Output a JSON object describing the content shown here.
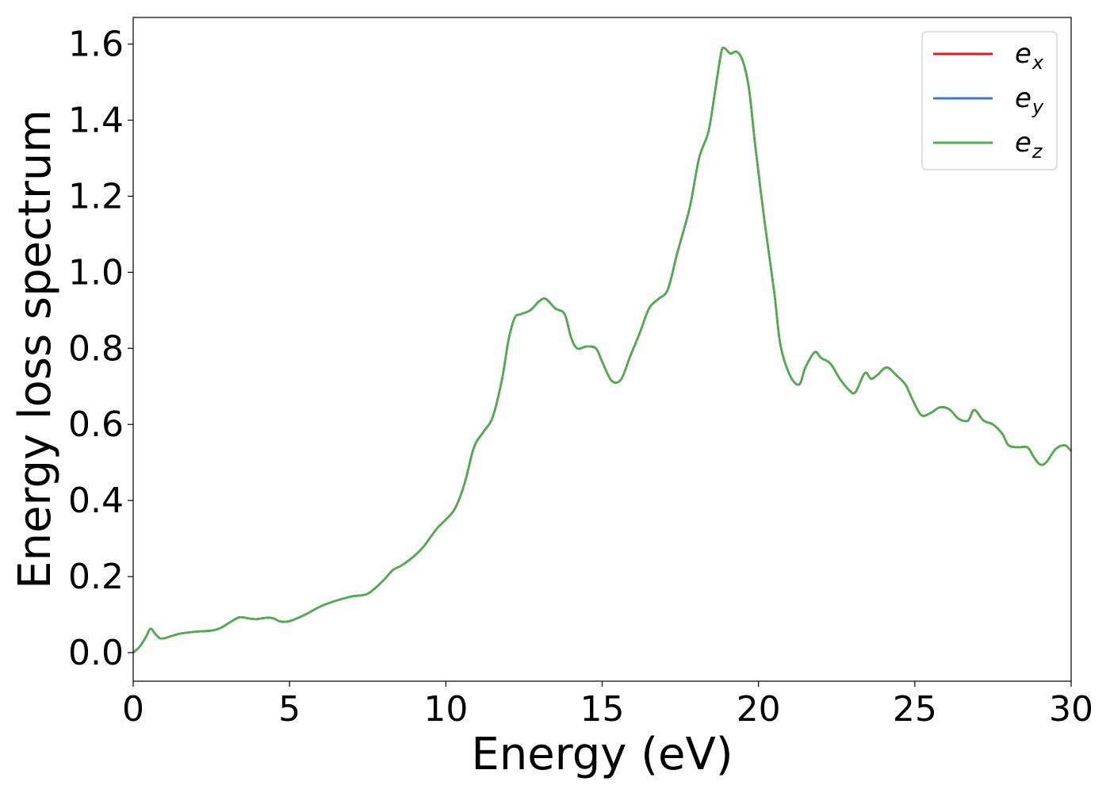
{
  "chart_data": {
    "type": "line",
    "xlabel": "Energy (eV)",
    "ylabel": "Energy loss spectrum",
    "xlim": [
      0,
      30
    ],
    "ylim": [
      -0.075,
      1.67
    ],
    "xticks": [
      0,
      5,
      10,
      15,
      20,
      25,
      30
    ],
    "yticks": [
      0.0,
      0.2,
      0.4,
      0.6,
      0.8,
      1.0,
      1.2,
      1.4,
      1.6
    ],
    "xtick_labels": [
      "0",
      "5",
      "10",
      "15",
      "20",
      "25",
      "30"
    ],
    "ytick_labels": [
      "0.0",
      "0.2",
      "0.4",
      "0.6",
      "0.8",
      "1.0",
      "1.2",
      "1.4",
      "1.6"
    ],
    "grid": false,
    "legend_position": "top-right",
    "x": [
      0.0,
      0.2,
      0.4,
      0.55,
      0.7,
      0.85,
      1.0,
      1.2,
      1.5,
      2.0,
      2.5,
      2.8,
      3.1,
      3.4,
      3.7,
      3.9,
      4.1,
      4.3,
      4.5,
      4.7,
      5.0,
      5.5,
      6.0,
      6.5,
      7.0,
      7.5,
      8.0,
      8.3,
      8.6,
      9.0,
      9.3,
      9.7,
      10.0,
      10.3,
      10.6,
      10.9,
      11.2,
      11.5,
      11.8,
      12.0,
      12.2,
      12.4,
      12.7,
      13.0,
      13.2,
      13.5,
      13.8,
      14.0,
      14.2,
      14.5,
      14.8,
      15.0,
      15.3,
      15.6,
      15.9,
      16.2,
      16.5,
      16.8,
      17.1,
      17.4,
      17.8,
      18.1,
      18.4,
      18.6,
      18.8,
      18.9,
      19.1,
      19.3,
      19.5,
      19.7,
      19.9,
      20.2,
      20.5,
      20.7,
      21.0,
      21.3,
      21.5,
      21.8,
      22.0,
      22.3,
      22.6,
      22.9,
      23.1,
      23.4,
      23.6,
      23.8,
      24.1,
      24.4,
      24.7,
      24.9,
      25.2,
      25.5,
      25.8,
      26.1,
      26.4,
      26.7,
      26.9,
      27.2,
      27.5,
      27.8,
      28.0,
      28.3,
      28.6,
      28.8,
      29.0,
      29.2,
      29.5,
      29.8,
      30.0
    ],
    "series": [
      {
        "name": "e_x",
        "color": "#e41a1c",
        "values": [
          0.0,
          0.015,
          0.04,
          0.063,
          0.05,
          0.038,
          0.038,
          0.043,
          0.05,
          0.055,
          0.058,
          0.065,
          0.08,
          0.093,
          0.09,
          0.088,
          0.09,
          0.092,
          0.09,
          0.082,
          0.083,
          0.1,
          0.122,
          0.137,
          0.148,
          0.155,
          0.19,
          0.217,
          0.23,
          0.255,
          0.28,
          0.325,
          0.35,
          0.38,
          0.445,
          0.54,
          0.58,
          0.62,
          0.72,
          0.82,
          0.88,
          0.89,
          0.9,
          0.925,
          0.93,
          0.905,
          0.89,
          0.83,
          0.8,
          0.805,
          0.8,
          0.765,
          0.715,
          0.718,
          0.78,
          0.84,
          0.905,
          0.93,
          0.955,
          1.05,
          1.17,
          1.3,
          1.37,
          1.47,
          1.575,
          1.59,
          1.575,
          1.58,
          1.555,
          1.48,
          1.33,
          1.13,
          0.95,
          0.81,
          0.73,
          0.705,
          0.75,
          0.79,
          0.775,
          0.76,
          0.72,
          0.69,
          0.685,
          0.735,
          0.72,
          0.73,
          0.75,
          0.73,
          0.705,
          0.67,
          0.625,
          0.63,
          0.645,
          0.64,
          0.615,
          0.61,
          0.638,
          0.61,
          0.6,
          0.575,
          0.545,
          0.54,
          0.54,
          0.515,
          0.495,
          0.5,
          0.535,
          0.545,
          0.53
        ]
      },
      {
        "name": "e_y",
        "color": "#377eb8",
        "values": [
          0.0,
          0.015,
          0.04,
          0.063,
          0.05,
          0.038,
          0.038,
          0.043,
          0.05,
          0.055,
          0.058,
          0.065,
          0.08,
          0.093,
          0.09,
          0.088,
          0.09,
          0.092,
          0.09,
          0.082,
          0.083,
          0.1,
          0.122,
          0.137,
          0.148,
          0.155,
          0.19,
          0.217,
          0.23,
          0.255,
          0.28,
          0.325,
          0.35,
          0.38,
          0.445,
          0.54,
          0.58,
          0.62,
          0.72,
          0.82,
          0.88,
          0.89,
          0.9,
          0.925,
          0.93,
          0.905,
          0.89,
          0.83,
          0.8,
          0.805,
          0.8,
          0.765,
          0.715,
          0.718,
          0.78,
          0.84,
          0.905,
          0.93,
          0.955,
          1.05,
          1.17,
          1.3,
          1.37,
          1.47,
          1.575,
          1.59,
          1.575,
          1.58,
          1.555,
          1.48,
          1.33,
          1.13,
          0.95,
          0.81,
          0.73,
          0.705,
          0.75,
          0.79,
          0.775,
          0.76,
          0.72,
          0.69,
          0.685,
          0.735,
          0.72,
          0.73,
          0.75,
          0.73,
          0.705,
          0.67,
          0.625,
          0.63,
          0.645,
          0.64,
          0.615,
          0.61,
          0.638,
          0.61,
          0.6,
          0.575,
          0.545,
          0.54,
          0.54,
          0.515,
          0.495,
          0.5,
          0.535,
          0.545,
          0.53
        ]
      },
      {
        "name": "e_z",
        "color": "#4daf4a",
        "values": [
          0.0,
          0.015,
          0.04,
          0.063,
          0.05,
          0.038,
          0.038,
          0.043,
          0.05,
          0.055,
          0.058,
          0.065,
          0.08,
          0.093,
          0.09,
          0.088,
          0.09,
          0.092,
          0.09,
          0.082,
          0.083,
          0.1,
          0.122,
          0.137,
          0.148,
          0.155,
          0.19,
          0.217,
          0.23,
          0.255,
          0.28,
          0.325,
          0.35,
          0.38,
          0.445,
          0.54,
          0.58,
          0.62,
          0.72,
          0.82,
          0.88,
          0.89,
          0.9,
          0.925,
          0.93,
          0.905,
          0.89,
          0.83,
          0.8,
          0.805,
          0.8,
          0.765,
          0.715,
          0.718,
          0.78,
          0.84,
          0.905,
          0.93,
          0.955,
          1.05,
          1.17,
          1.3,
          1.37,
          1.47,
          1.575,
          1.59,
          1.575,
          1.58,
          1.555,
          1.48,
          1.33,
          1.13,
          0.95,
          0.81,
          0.73,
          0.705,
          0.75,
          0.79,
          0.775,
          0.76,
          0.72,
          0.69,
          0.685,
          0.735,
          0.72,
          0.73,
          0.75,
          0.73,
          0.705,
          0.67,
          0.625,
          0.63,
          0.645,
          0.64,
          0.615,
          0.61,
          0.638,
          0.61,
          0.6,
          0.575,
          0.545,
          0.54,
          0.54,
          0.515,
          0.495,
          0.5,
          0.535,
          0.545,
          0.53
        ]
      }
    ],
    "legend": [
      {
        "base": "e",
        "sub": "x",
        "color": "#e41a1c"
      },
      {
        "base": "e",
        "sub": "y",
        "color": "#377eb8"
      },
      {
        "base": "e",
        "sub": "z",
        "color": "#4daf4a"
      }
    ]
  }
}
